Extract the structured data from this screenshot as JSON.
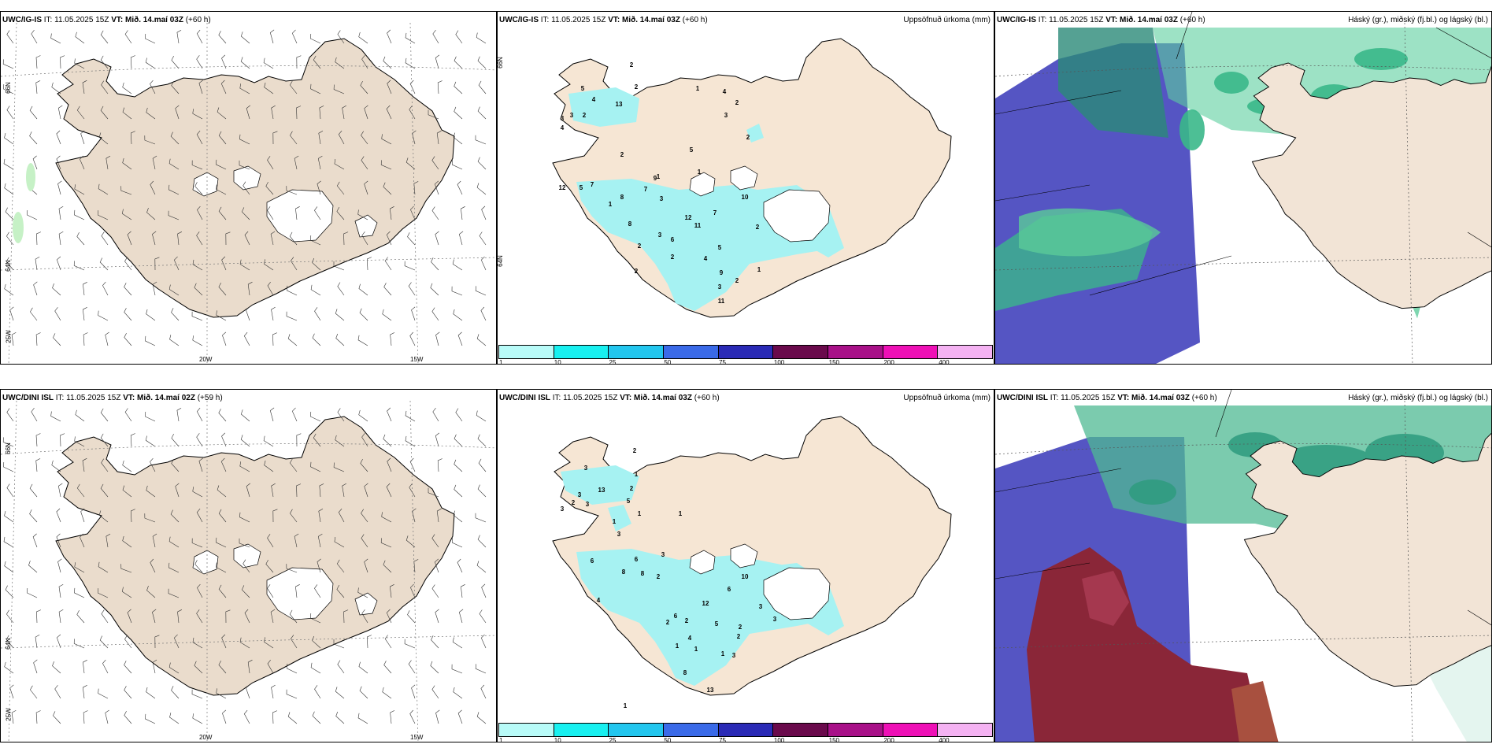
{
  "rows": [
    {
      "panels": [
        {
          "model": "UWC/IG-IS",
          "it_label": "IT:",
          "it": "11.05.2025 15Z",
          "vt_label": "VT:",
          "vt": "Mið. 14.maí 03Z",
          "lead": "(+60 h)",
          "right_title": "",
          "kind": "wind"
        },
        {
          "model": "UWC/IG-IS",
          "it_label": "IT:",
          "it": "11.05.2025 15Z",
          "vt_label": "VT:",
          "vt": "Mið. 14.maí 03Z",
          "lead": "(+60 h)",
          "right_title": "Uppsöfnuð úrkoma (mm)",
          "kind": "precip"
        },
        {
          "model": "UWC/IG-IS",
          "it_label": "IT:",
          "it": "11.05.2025 15Z",
          "vt_label": "VT:",
          "vt": "Mið. 14.maí 03Z",
          "lead": "(+60 h)",
          "right_title": "Háský (gr.), miðský (fj.bl.) og lágský (bl.)",
          "kind": "cloud"
        }
      ]
    },
    {
      "panels": [
        {
          "model": "UWC/DINI ISL",
          "it_label": "IT:",
          "it": "11.05.2025 15Z",
          "vt_label": "VT:",
          "vt": "Mið. 14.maí 02Z",
          "lead": "(+59 h)",
          "right_title": "",
          "kind": "wind"
        },
        {
          "model": "UWC/DINI ISL",
          "it_label": "IT:",
          "it": "11.05.2025 15Z",
          "vt_label": "VT:",
          "vt": "Mið. 14.maí 03Z",
          "lead": "(+60 h)",
          "right_title": "Uppsöfnuð úrkoma (mm)",
          "kind": "precip"
        },
        {
          "model": "UWC/DINI ISL",
          "it_label": "IT:",
          "it": "11.05.2025 15Z",
          "vt_label": "VT:",
          "vt": "Mið. 14.maí 03Z",
          "lead": "(+60 h)",
          "right_title": "Háský (gr.), miðský (fj.bl.) og lágský (bl.)",
          "kind": "cloud"
        }
      ]
    }
  ],
  "axis_labels": {
    "lat66": "66N",
    "lat64": "64N",
    "lon25": "25W",
    "lon20": "20W",
    "lon15": "15W"
  },
  "precip_legend": {
    "ticks": [
      "1",
      "10",
      "25",
      "50",
      "75",
      "100",
      "150",
      "200",
      "400"
    ],
    "colors": [
      "#b8fbf8",
      "#18f0f0",
      "#22c6ee",
      "#3a6ae8",
      "#2a2ab6",
      "#6a0a4c",
      "#a81088",
      "#ee10b6",
      "#f4b2f2"
    ]
  },
  "precip_values": {
    "top": [
      {
        "v": "2"
      },
      {
        "v": "2"
      },
      {
        "v": "5"
      },
      {
        "v": "4"
      },
      {
        "v": "13"
      },
      {
        "v": "3"
      },
      {
        "v": "3"
      },
      {
        "v": "2"
      },
      {
        "v": "4"
      },
      {
        "v": "1"
      },
      {
        "v": "4"
      },
      {
        "v": "2"
      },
      {
        "v": "3"
      },
      {
        "v": "2"
      },
      {
        "v": "5"
      },
      {
        "v": "1"
      },
      {
        "v": "1"
      },
      {
        "v": "2"
      },
      {
        "v": "12"
      },
      {
        "v": "5"
      },
      {
        "v": "7"
      },
      {
        "v": "9"
      },
      {
        "v": "7"
      },
      {
        "v": "8"
      },
      {
        "v": "3"
      },
      {
        "v": "1"
      },
      {
        "v": "8"
      },
      {
        "v": "10"
      },
      {
        "v": "12"
      },
      {
        "v": "11"
      },
      {
        "v": "7"
      },
      {
        "v": "2"
      },
      {
        "v": "6"
      },
      {
        "v": "3"
      },
      {
        "v": "2"
      },
      {
        "v": "2"
      },
      {
        "v": "5"
      },
      {
        "v": "4"
      },
      {
        "v": "2"
      },
      {
        "v": "9"
      },
      {
        "v": "2"
      },
      {
        "v": "3"
      },
      {
        "v": "11"
      },
      {
        "v": "1"
      }
    ],
    "bottom": [
      {
        "v": "2"
      },
      {
        "v": "3"
      },
      {
        "v": "13"
      },
      {
        "v": "3"
      },
      {
        "v": "3"
      },
      {
        "v": "3"
      },
      {
        "v": "2"
      },
      {
        "v": "1"
      },
      {
        "v": "1"
      },
      {
        "v": "2"
      },
      {
        "v": "5"
      },
      {
        "v": "1"
      },
      {
        "v": "3"
      },
      {
        "v": "6"
      },
      {
        "v": "1"
      },
      {
        "v": "8"
      },
      {
        "v": "6"
      },
      {
        "v": "3"
      },
      {
        "v": "2"
      },
      {
        "v": "4"
      },
      {
        "v": "8"
      },
      {
        "v": "10"
      },
      {
        "v": "6"
      },
      {
        "v": "12"
      },
      {
        "v": "3"
      },
      {
        "v": "2"
      },
      {
        "v": "6"
      },
      {
        "v": "2"
      },
      {
        "v": "5"
      },
      {
        "v": "4"
      },
      {
        "v": "2"
      },
      {
        "v": "3"
      },
      {
        "v": "1"
      },
      {
        "v": "1"
      },
      {
        "v": "8"
      },
      {
        "v": "3"
      },
      {
        "v": "13"
      },
      {
        "v": "1"
      },
      {
        "v": "2"
      },
      {
        "v": "1"
      }
    ]
  },
  "colors": {
    "land": "#f6e6d4",
    "land_wind": "#eadccc",
    "precip": "#a6f2f2",
    "high_cloud": "#2bb58a",
    "mid_cloud": "#4f4fc0",
    "low_cloud": "#8b2030"
  }
}
